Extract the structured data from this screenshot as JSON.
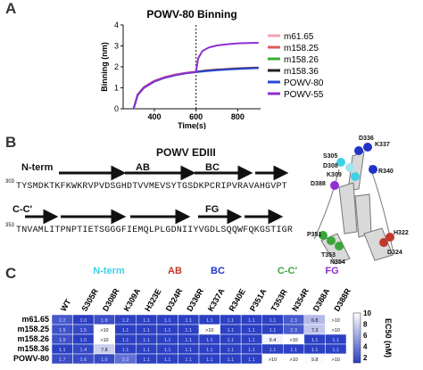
{
  "panel_a": {
    "letter": "A",
    "chart_data": {
      "type": "line",
      "title": "POWV-80 Binning",
      "xlabel": "Time(s)",
      "ylabel": "Binning (nm)",
      "xlim": [
        250,
        910
      ],
      "ylim": [
        0,
        4
      ],
      "xticks": [
        "400",
        "600",
        "800"
      ],
      "yticks": [
        "0",
        "1",
        "2",
        "3",
        "4"
      ],
      "annotation": "dotted vertical line at x=600",
      "series": [
        {
          "name": "m61.65",
          "color": "#f4a3b5",
          "x": [
            300,
            320,
            350,
            400,
            450,
            500,
            550,
            600,
            650,
            700,
            750,
            800,
            850,
            900
          ],
          "y": [
            0,
            0.7,
            1.05,
            1.35,
            1.52,
            1.64,
            1.72,
            1.78,
            1.84,
            1.88,
            1.91,
            1.94,
            1.96,
            1.98
          ]
        },
        {
          "name": "m158.25",
          "color": "#e35a5a",
          "x": [
            300,
            320,
            350,
            400,
            450,
            500,
            550,
            600,
            650,
            700,
            750,
            800,
            850,
            900
          ],
          "y": [
            0,
            0.68,
            1.02,
            1.32,
            1.5,
            1.62,
            1.7,
            1.76,
            1.82,
            1.86,
            1.89,
            1.92,
            1.94,
            1.96
          ]
        },
        {
          "name": "m158.26",
          "color": "#34b233",
          "x": [
            300,
            320,
            350,
            400,
            450,
            500,
            550,
            600,
            650,
            700,
            750,
            800,
            850,
            900
          ],
          "y": [
            0,
            0.66,
            1.0,
            1.3,
            1.48,
            1.6,
            1.69,
            1.75,
            1.81,
            1.85,
            1.88,
            1.91,
            1.93,
            1.95
          ]
        },
        {
          "name": "m158.36",
          "color": "#222222",
          "x": [
            300,
            320,
            350,
            400,
            450,
            500,
            550,
            600,
            650,
            700,
            750,
            800,
            850,
            900
          ],
          "y": [
            0,
            0.67,
            1.01,
            1.31,
            1.49,
            1.61,
            1.7,
            1.76,
            1.82,
            1.86,
            1.89,
            1.92,
            1.94,
            1.96
          ]
        },
        {
          "name": "POWV-80",
          "color": "#2848d8",
          "x": [
            300,
            320,
            350,
            400,
            450,
            500,
            550,
            600,
            650,
            700,
            750,
            800,
            850,
            900
          ],
          "y": [
            0,
            0.66,
            1.0,
            1.3,
            1.48,
            1.6,
            1.69,
            1.75,
            1.8,
            1.84,
            1.87,
            1.9,
            1.92,
            1.94
          ]
        },
        {
          "name": "POWV-55",
          "color": "#8e2fd0",
          "x": [
            300,
            320,
            350,
            400,
            450,
            500,
            550,
            600,
            610,
            630,
            660,
            700,
            750,
            800,
            850,
            900
          ],
          "y": [
            0,
            0.67,
            1.01,
            1.31,
            1.49,
            1.61,
            1.7,
            1.76,
            2.4,
            2.75,
            2.92,
            3.02,
            3.08,
            3.12,
            3.14,
            3.15
          ]
        }
      ]
    }
  },
  "panel_b": {
    "letter": "B",
    "title": "POWV EDIII",
    "segments": [
      {
        "label": "N-term",
        "color": "#3fd0e8"
      },
      {
        "label": "AB",
        "color": "#b52a2a"
      },
      {
        "label": "BC",
        "color": "#2233c8"
      },
      {
        "label": "C-C'",
        "color": "#3aa63a"
      },
      {
        "label": "FG",
        "color": "#8e2fd0"
      }
    ],
    "seq1_start": "303",
    "seq1": "TYSMDKTKFKWKRVPVDSGHDTVVMEVSYTGSDKPCRIPVRAVAHGVPT",
    "seq2_start": "353",
    "seq2": "TNVAMLITPNPTIETSGGGFIEMQLPLGDNIIYVGDLSQQWFQKGSTIGR",
    "structure_labels": [
      "D336",
      "K337",
      "S305",
      "D308",
      "K309",
      "R340",
      "D388",
      "H322",
      "P351",
      "D324",
      "T353",
      "N354"
    ]
  },
  "panel_c": {
    "letter": "C",
    "groups": [
      {
        "label": "N-term",
        "color": "#3fd0e8"
      },
      {
        "label": "AB",
        "color": "#c0392b"
      },
      {
        "label": "BC",
        "color": "#2233c8"
      },
      {
        "label": "C-C'",
        "color": "#3aa63a"
      },
      {
        "label": "FG",
        "color": "#8e2fd0"
      }
    ],
    "chart_data": {
      "type": "heatmap",
      "columns": [
        "WT",
        "S305R",
        "D308R",
        "K309A",
        "H323E",
        "D324R",
        "D336R",
        "K337A",
        "R340E",
        "P351A",
        "T353R",
        "N354R",
        "D388A",
        "D388R"
      ],
      "rows": [
        {
          "name": "m61.65",
          "values": [
            "2.2",
            "1.0",
            "1.8",
            "1.2",
            "1.1",
            "1.1",
            "1.1",
            "1.1",
            "1.1",
            "1.1",
            "1.1",
            "2.3",
            "6.8",
            ">10"
          ]
        },
        {
          "name": "m158.25",
          "values": [
            "1.9",
            "1.5",
            ">10",
            "1.1",
            "1.1",
            "1.1",
            "1.1",
            ">10",
            "1.1",
            "1.1",
            "1.1",
            "2.3",
            "7.3",
            ">10"
          ]
        },
        {
          "name": "m158.26",
          "values": [
            "1.9",
            "1.0",
            ">10",
            "1.1",
            "1.1",
            "1.1",
            "1.1",
            "1.1",
            "1.1",
            "1.1",
            "9.4",
            ">10",
            "1.1",
            "1.1"
          ]
        },
        {
          "name": "m158.36",
          "values": [
            "1.1",
            "1.4",
            "7.8",
            "1.1",
            "1.1",
            "1.1",
            "1.1",
            "1.1",
            "1.1",
            "1.1",
            "1.1",
            "1.1",
            "1.1",
            "1.1"
          ]
        },
        {
          "name": "POWV-80",
          "values": [
            "1.7",
            "1.6",
            "1.6",
            "3.3",
            "1.1",
            "1.1",
            "1.1",
            "1.1",
            "1.1",
            "1.1",
            ">10",
            ">10",
            "9.8",
            ">10"
          ]
        }
      ],
      "colorbar": {
        "label": "EC50 (nM)",
        "ticks": [
          "10",
          "8",
          "6",
          "4",
          "2"
        ],
        "min": 1,
        "max": 10,
        "low_color": "#2a3ec2",
        "high_color": "#ffffff"
      }
    }
  }
}
